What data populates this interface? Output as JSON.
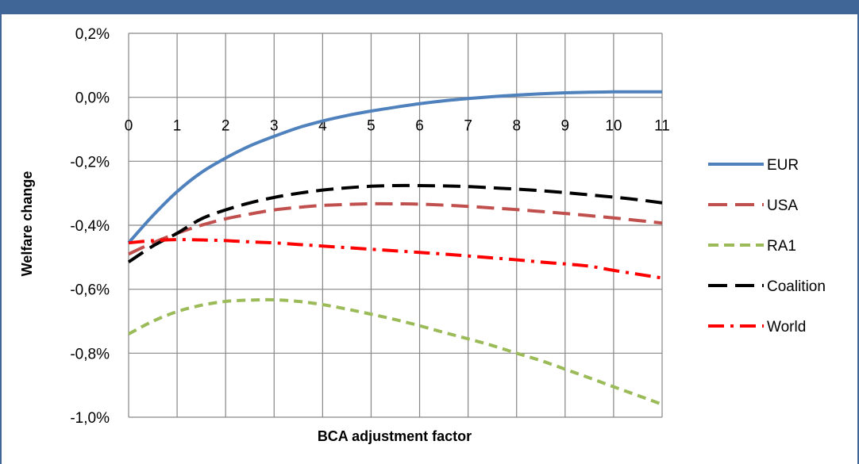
{
  "colors": {
    "frame": "#3f6696",
    "grid": "#868686"
  },
  "chart_data": {
    "type": "line",
    "xlabel": "BCA adjustment factor",
    "ylabel": "Welfare change",
    "xlim": [
      0,
      11
    ],
    "ylim": [
      -1.0,
      0.2
    ],
    "x_ticks": [
      "0",
      "1",
      "2",
      "3",
      "4",
      "5",
      "6",
      "7",
      "8",
      "9",
      "10",
      "11"
    ],
    "y_ticks": [
      {
        "value": 0.2,
        "label": "0,2%"
      },
      {
        "value": 0.0,
        "label": "0,0%"
      },
      {
        "value": -0.2,
        "label": "-0,2%"
      },
      {
        "value": -0.4,
        "label": "-0,4%"
      },
      {
        "value": -0.6,
        "label": "-0,6%"
      },
      {
        "value": -0.8,
        "label": "-0,8%"
      },
      {
        "value": -1.0,
        "label": "-1,0%"
      }
    ],
    "grid": true,
    "legend_position": "right",
    "x": [
      0,
      0.5,
      1,
      1.5,
      2,
      2.5,
      3,
      3.5,
      4,
      4.5,
      5,
      5.5,
      6,
      6.5,
      7,
      7.5,
      8,
      8.5,
      9,
      9.5,
      10,
      10.5,
      11
    ],
    "series": [
      {
        "name": "EUR",
        "color": "#4f81bd",
        "dash": "solid",
        "width": 4,
        "values": [
          -0.455,
          -0.37,
          -0.295,
          -0.235,
          -0.19,
          -0.152,
          -0.122,
          -0.095,
          -0.074,
          -0.057,
          -0.043,
          -0.031,
          -0.02,
          -0.011,
          -0.004,
          0.002,
          0.007,
          0.011,
          0.014,
          0.016,
          0.017,
          0.017,
          0.017
        ]
      },
      {
        "name": "USA",
        "color": "#c0504d",
        "dash": "long-dash",
        "width": 4,
        "values": [
          -0.49,
          -0.455,
          -0.425,
          -0.4,
          -0.38,
          -0.365,
          -0.352,
          -0.344,
          -0.338,
          -0.335,
          -0.333,
          -0.333,
          -0.334,
          -0.337,
          -0.341,
          -0.346,
          -0.351,
          -0.357,
          -0.363,
          -0.37,
          -0.377,
          -0.385,
          -0.393
        ]
      },
      {
        "name": "RA1",
        "color": "#9bbb59",
        "dash": "short-dash",
        "width": 4,
        "values": [
          -0.74,
          -0.7,
          -0.67,
          -0.65,
          -0.638,
          -0.634,
          -0.633,
          -0.638,
          -0.648,
          -0.662,
          -0.678,
          -0.695,
          -0.714,
          -0.735,
          -0.755,
          -0.776,
          -0.8,
          -0.823,
          -0.85,
          -0.877,
          -0.905,
          -0.932,
          -0.96
        ]
      },
      {
        "name": "Coalition",
        "color": "#000000",
        "dash": "long-dash",
        "width": 4,
        "values": [
          -0.515,
          -0.465,
          -0.425,
          -0.38,
          -0.352,
          -0.33,
          -0.313,
          -0.3,
          -0.29,
          -0.283,
          -0.278,
          -0.276,
          -0.276,
          -0.277,
          -0.279,
          -0.283,
          -0.287,
          -0.292,
          -0.298,
          -0.305,
          -0.312,
          -0.32,
          -0.33
        ]
      },
      {
        "name": "World",
        "color": "#ff0000",
        "dash": "dash-dot",
        "width": 4,
        "values": [
          -0.455,
          -0.448,
          -0.445,
          -0.446,
          -0.448,
          -0.452,
          -0.455,
          -0.46,
          -0.465,
          -0.47,
          -0.475,
          -0.48,
          -0.485,
          -0.49,
          -0.496,
          -0.502,
          -0.508,
          -0.515,
          -0.521,
          -0.528,
          -0.541,
          -0.553,
          -0.565
        ]
      }
    ]
  }
}
